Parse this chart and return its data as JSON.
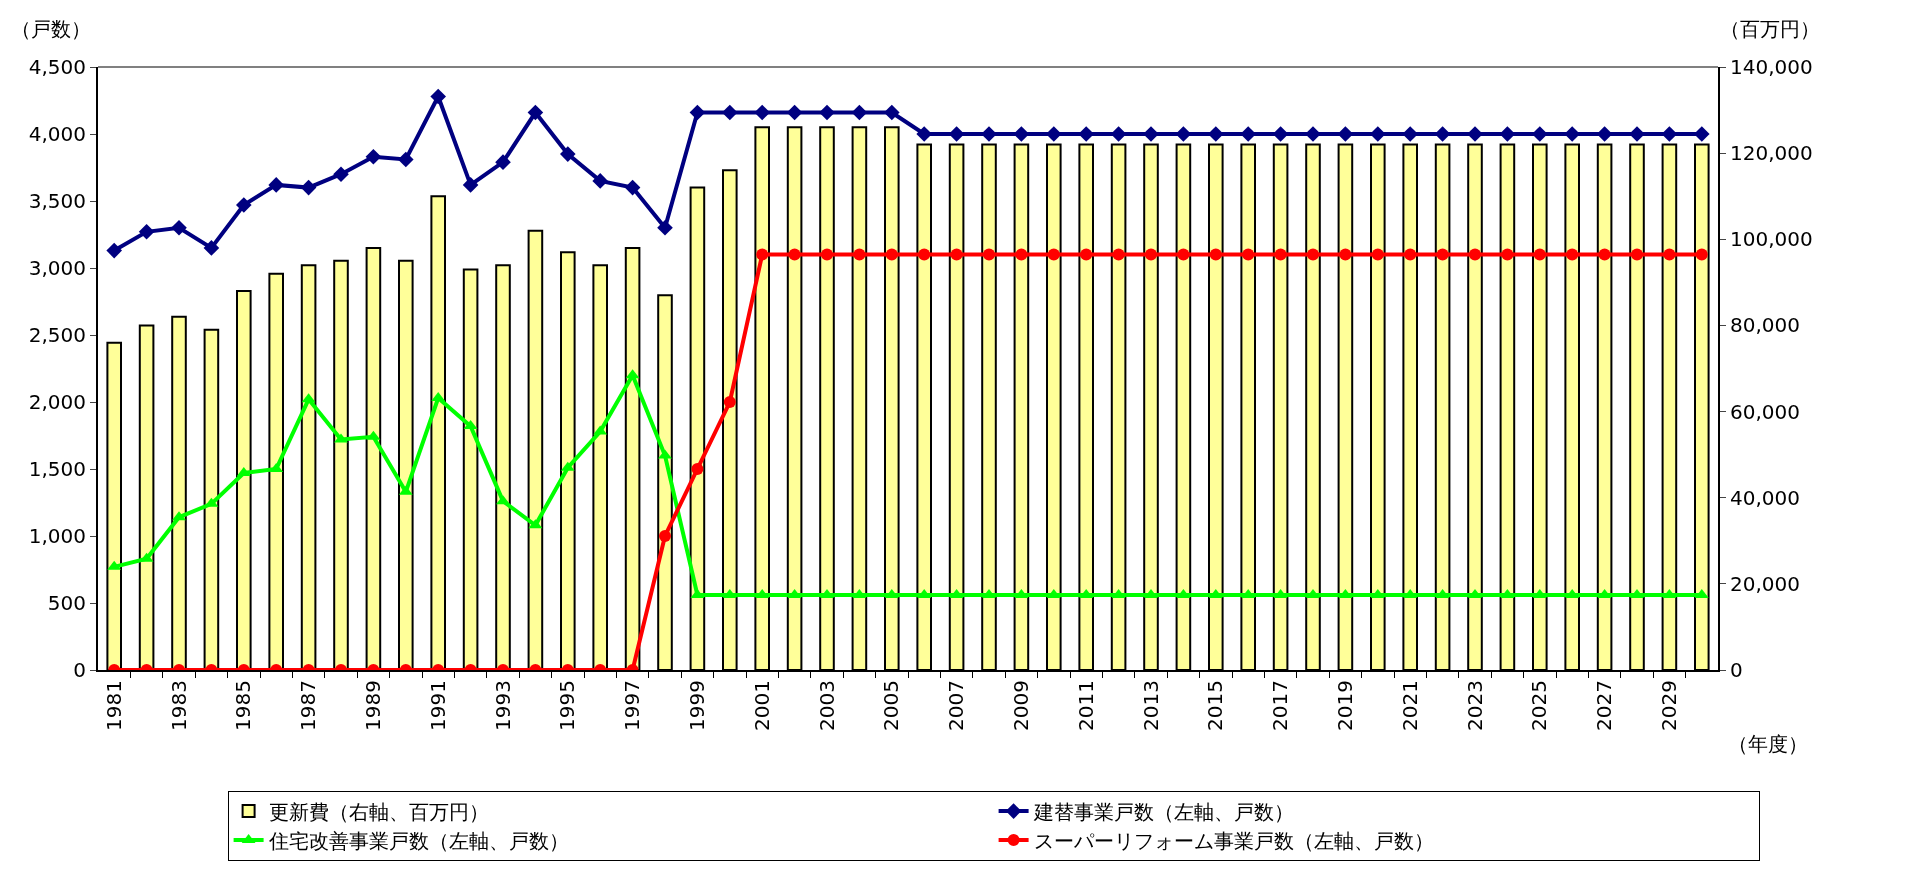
{
  "chart_data": {
    "type": "bar",
    "xlabel": "（年度）",
    "ylabel": "（戸数）",
    "y2label": "（百万円）",
    "categories": [
      "1981",
      null,
      "1983",
      null,
      "1985",
      null,
      "1987",
      null,
      "1989",
      null,
      "1991",
      null,
      "1993",
      null,
      "1995",
      null,
      "1997",
      null,
      "1999",
      null,
      "2001",
      null,
      "2003",
      null,
      "2005",
      null,
      "2007",
      null,
      "2009",
      null,
      "2011",
      null,
      "2013",
      null,
      "2015",
      null,
      "2017",
      null,
      "2019",
      null,
      "2021",
      null,
      "2023",
      null,
      "2025",
      null,
      "2027",
      null,
      "2029",
      null
    ],
    "ylim": [
      0,
      4500
    ],
    "yticks": [
      {
        "value": 0,
        "label": "0"
      },
      {
        "value": 500,
        "label": "500"
      },
      {
        "value": 1000,
        "label": "1,000"
      },
      {
        "value": 1500,
        "label": "1,500"
      },
      {
        "value": 2000,
        "label": "2,000"
      },
      {
        "value": 2500,
        "label": "2,500"
      },
      {
        "value": 3000,
        "label": "3,000"
      },
      {
        "value": 3500,
        "label": "3,500"
      },
      {
        "value": 4000,
        "label": "4,000"
      },
      {
        "value": 4500,
        "label": "4,500"
      }
    ],
    "y2lim": [
      0,
      140000
    ],
    "y2ticks": [
      {
        "value": 0,
        "label": "0"
      },
      {
        "value": 20000,
        "label": "20,000"
      },
      {
        "value": 40000,
        "label": "40,000"
      },
      {
        "value": 60000,
        "label": "60,000"
      },
      {
        "value": 80000,
        "label": "80,000"
      },
      {
        "value": 100000,
        "label": "100,000"
      },
      {
        "value": 120000,
        "label": "120,000"
      },
      {
        "value": 140000,
        "label": "140,000"
      }
    ],
    "grid": false,
    "legend": "bottom",
    "series": [
      {
        "name": "更新費（右軸、百万円）",
        "axis": "y2",
        "color": "#ffff99",
        "values": [
          76000,
          80000,
          82000,
          79000,
          88000,
          92000,
          94000,
          95000,
          98000,
          95000,
          110000,
          93000,
          94000,
          102000,
          97000,
          94000,
          98000,
          87000,
          112000,
          116000,
          126000,
          126000,
          126000,
          126000,
          126000,
          122000,
          122000,
          122000,
          122000,
          122000,
          122000,
          122000,
          122000,
          122000,
          122000,
          122000,
          122000,
          122000,
          122000,
          122000,
          122000,
          122000,
          122000,
          122000,
          122000,
          122000,
          122000,
          122000,
          122000,
          122000
        ]
      },
      {
        "name": "建替事業戸数（左軸、戸数）",
        "type": "line",
        "marker": "diamond",
        "color": "#000080",
        "values": [
          3130,
          3270,
          3300,
          3150,
          3470,
          3620,
          3600,
          3700,
          3830,
          3810,
          4280,
          3620,
          3790,
          4160,
          3850,
          3650,
          3600,
          3300,
          4160,
          4160,
          4160,
          4160,
          4160,
          4160,
          4160,
          4000,
          4000,
          4000,
          4000,
          4000,
          4000,
          4000,
          4000,
          4000,
          4000,
          4000,
          4000,
          4000,
          4000,
          4000,
          4000,
          4000,
          4000,
          4000,
          4000,
          4000,
          4000,
          4000,
          4000,
          4000
        ]
      },
      {
        "name": "住宅改善事業戸数（左軸、戸数）",
        "type": "line",
        "marker": "triangle",
        "color": "#00ff00",
        "values": [
          770,
          830,
          1140,
          1240,
          1470,
          1500,
          2020,
          1720,
          1740,
          1330,
          2030,
          1820,
          1260,
          1080,
          1510,
          1780,
          2200,
          1600,
          560,
          560,
          560,
          560,
          560,
          560,
          560,
          560,
          560,
          560,
          560,
          560,
          560,
          560,
          560,
          560,
          560,
          560,
          560,
          560,
          560,
          560,
          560,
          560,
          560,
          560,
          560,
          560,
          560,
          560,
          560,
          560
        ]
      },
      {
        "name": "スーパーリフォーム事業戸数（左軸、戸数）",
        "type": "line",
        "marker": "circle",
        "color": "#ff0000",
        "values": [
          0,
          0,
          0,
          0,
          0,
          0,
          0,
          0,
          0,
          0,
          0,
          0,
          0,
          0,
          0,
          0,
          0,
          1000,
          1500,
          2000,
          3100,
          3100,
          3100,
          3100,
          3100,
          3100,
          3100,
          3100,
          3100,
          3100,
          3100,
          3100,
          3100,
          3100,
          3100,
          3100,
          3100,
          3100,
          3100,
          3100,
          3100,
          3100,
          3100,
          3100,
          3100,
          3100,
          3100,
          3100,
          3100,
          3100
        ]
      }
    ]
  }
}
